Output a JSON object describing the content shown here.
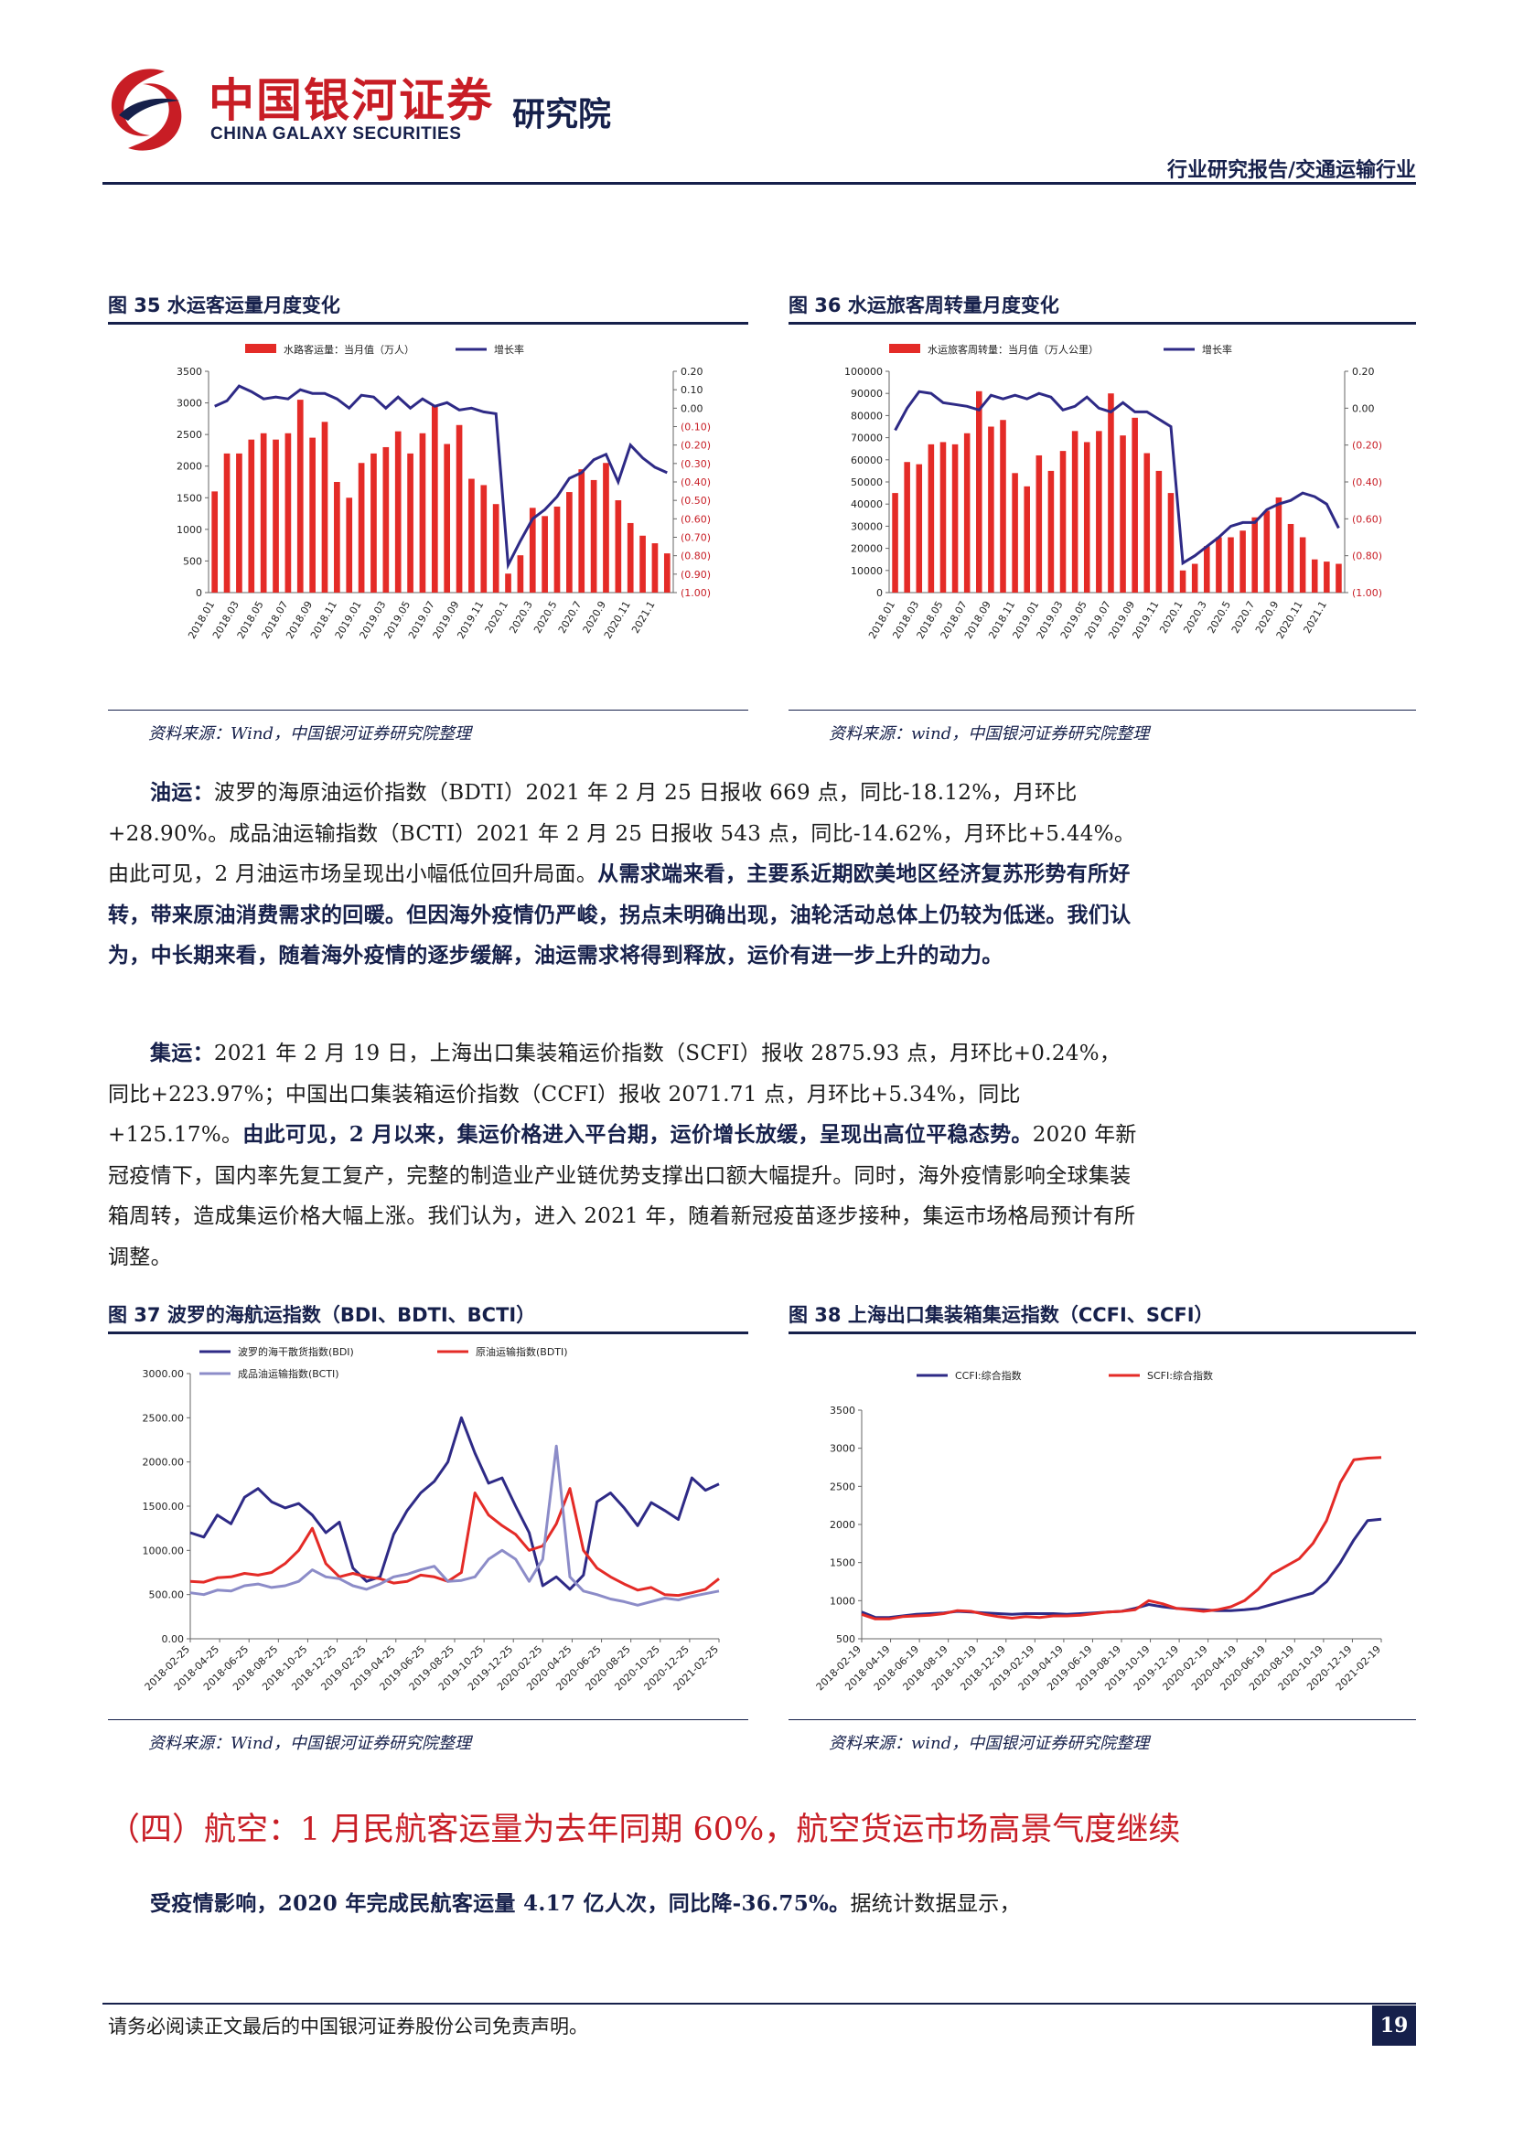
{
  "header": {
    "brand_cn": "中国银河证券",
    "brand_en": "CHINA GALAXY SECURITIES",
    "institute": "研究院",
    "report_type": "行业研究报告/交通运输行业"
  },
  "figures": {
    "fig35": {
      "title": "图 35 水运客运量月度变化",
      "source": "资料来源：Wind，中国银河证券研究院整理"
    },
    "fig36": {
      "title": "图 36 水运旅客周转量月度变化",
      "source": "资料来源：wind，中国银河证券研究院整理"
    },
    "fig37": {
      "title": "图 37 波罗的海航运指数（BDI、BDTI、BCTI）",
      "source": "资料来源：Wind，中国银河证券研究院整理"
    },
    "fig38": {
      "title": "图 38 上海出口集装箱集运指数（CCFI、SCFI）",
      "source": "资料来源：wind，中国银河证券研究院整理"
    }
  },
  "chart_data": [
    {
      "id": "fig35",
      "type": "bar+line",
      "title": "",
      "categories": [
        "2018.01",
        "2018.02",
        "2018.03",
        "2018.04",
        "2018.05",
        "2018.06",
        "2018.07",
        "2018.08",
        "2018.09",
        "2018.10",
        "2018.11",
        "2018.12",
        "2019.01",
        "2019.02",
        "2019.03",
        "2019.04",
        "2019.05",
        "2019.06",
        "2019.07",
        "2019.08",
        "2019.09",
        "2019.10",
        "2019.11",
        "2019.12",
        "2020.1",
        "2020.2",
        "2020.3",
        "2020.4",
        "2020.5",
        "2020.6",
        "2020.7",
        "2020.8",
        "2020.9",
        "2020.10",
        "2020.11",
        "2020.12",
        "2021.1",
        "2021.2"
      ],
      "tick_labels": [
        "2018.01",
        "2018.03",
        "2018.05",
        "2018.07",
        "2018.09",
        "2018.11",
        "2019.01",
        "2019.03",
        "2019.05",
        "2019.07",
        "2019.09",
        "2019.11",
        "2020.1",
        "2020.3",
        "2020.5",
        "2020.7",
        "2020.9",
        "2020.11",
        "2021.1"
      ],
      "series": [
        {
          "name": "水路客运量：当月值（万人）",
          "kind": "bar",
          "axis": "left",
          "color": "#e42b27",
          "values": [
            1600,
            2200,
            2200,
            2420,
            2520,
            2420,
            2520,
            3050,
            2450,
            2700,
            1750,
            1500,
            2050,
            2200,
            2300,
            2550,
            2200,
            2520,
            2950,
            2350,
            2650,
            1800,
            1700,
            1400,
            300,
            590,
            1340,
            1210,
            1360,
            1590,
            1950,
            1780,
            2050,
            1460,
            1100,
            900,
            780,
            620
          ]
        },
        {
          "name": "增长率",
          "kind": "line",
          "axis": "right",
          "color": "#2e2a86",
          "values": [
            0.01,
            0.04,
            0.12,
            0.09,
            0.05,
            0.06,
            0.05,
            0.1,
            0.08,
            0.08,
            0.05,
            0.0,
            0.07,
            0.06,
            0.0,
            0.06,
            0.0,
            0.05,
            0.01,
            0.03,
            -0.01,
            -0.0,
            -0.02,
            -0.03,
            -0.85,
            -0.72,
            -0.6,
            -0.55,
            -0.48,
            -0.38,
            -0.35,
            -0.28,
            -0.25,
            -0.4,
            -0.2,
            -0.27,
            -0.32,
            -0.35
          ]
        }
      ],
      "left_axis": {
        "ticks": [
          "0",
          "500",
          "1000",
          "1500",
          "2000",
          "2500",
          "3000",
          "3500"
        ],
        "ylim": [
          0,
          3500
        ]
      },
      "right_axis": {
        "ticks": [
          "0.20",
          "0.10",
          "0.00",
          "(0.10)",
          "(0.20)",
          "(0.30)",
          "(0.40)",
          "(0.50)",
          "(0.60)",
          "(0.70)",
          "(0.80)",
          "(0.90)",
          "(1.00)"
        ],
        "ylim": [
          -1.0,
          0.2
        ]
      },
      "legend_position": "top"
    },
    {
      "id": "fig36",
      "type": "bar+line",
      "title": "",
      "categories": [
        "2018.01",
        "2018.02",
        "2018.03",
        "2018.04",
        "2018.05",
        "2018.06",
        "2018.07",
        "2018.08",
        "2018.09",
        "2018.10",
        "2018.11",
        "2018.12",
        "2019.01",
        "2019.02",
        "2019.03",
        "2019.04",
        "2019.05",
        "2019.06",
        "2019.07",
        "2019.08",
        "2019.09",
        "2019.10",
        "2019.11",
        "2019.12",
        "2020.1",
        "2020.2",
        "2020.3",
        "2020.4",
        "2020.5",
        "2020.6",
        "2020.7",
        "2020.8",
        "2020.9",
        "2020.10",
        "2020.11",
        "2020.12",
        "2021.1",
        "2021.2"
      ],
      "tick_labels": [
        "2018.01",
        "2018.03",
        "2018.05",
        "2018.07",
        "2018.09",
        "2018.11",
        "2019.01",
        "2019.03",
        "2019.05",
        "2019.07",
        "2019.09",
        "2019.11",
        "2020.1",
        "2020.3",
        "2020.5",
        "2020.7",
        "2020.9",
        "2020.11",
        "2021.1"
      ],
      "series": [
        {
          "name": "水运旅客周转量：当月值（万人公里）",
          "kind": "bar",
          "axis": "left",
          "color": "#e42b27",
          "values": [
            45000,
            59000,
            58000,
            67000,
            68000,
            67000,
            72000,
            91000,
            75000,
            78000,
            54000,
            48000,
            62000,
            55000,
            64000,
            73000,
            68000,
            73000,
            90000,
            71000,
            79000,
            63000,
            55000,
            45000,
            10000,
            13000,
            21000,
            25000,
            25000,
            28000,
            34000,
            37000,
            43000,
            31000,
            25000,
            15000,
            14000,
            13000
          ]
        },
        {
          "name": "增长率",
          "kind": "line",
          "axis": "right",
          "color": "#2e2a86",
          "values": [
            -0.12,
            0.0,
            0.09,
            0.08,
            0.03,
            0.02,
            0.01,
            -0.01,
            0.07,
            0.05,
            0.07,
            0.05,
            0.08,
            0.06,
            -0.01,
            0.01,
            0.06,
            0.0,
            -0.02,
            0.03,
            -0.02,
            -0.02,
            -0.06,
            -0.1,
            -0.84,
            -0.8,
            -0.75,
            -0.7,
            -0.64,
            -0.62,
            -0.62,
            -0.55,
            -0.52,
            -0.5,
            -0.46,
            -0.48,
            -0.52,
            -0.65
          ]
        }
      ],
      "left_axis": {
        "ticks": [
          "0",
          "10000",
          "20000",
          "30000",
          "40000",
          "50000",
          "60000",
          "70000",
          "80000",
          "90000",
          "100000"
        ],
        "ylim": [
          0,
          100000
        ]
      },
      "right_axis": {
        "ticks": [
          "0.20",
          "0.00",
          "(0.20)",
          "(0.40)",
          "(0.60)",
          "(0.80)",
          "(1.00)"
        ],
        "ylim": [
          -1.0,
          0.2
        ]
      },
      "legend_position": "top"
    },
    {
      "id": "fig37",
      "type": "line",
      "title": "",
      "tick_labels": [
        "2018-02-25",
        "2018-04-25",
        "2018-06-25",
        "2018-08-25",
        "2018-10-25",
        "2018-12-25",
        "2019-02-25",
        "2019-04-25",
        "2019-06-25",
        "2019-08-25",
        "2019-10-25",
        "2019-12-25",
        "2020-02-25",
        "2020-04-25",
        "2020-06-25",
        "2020-08-25",
        "2020-10-25",
        "2020-12-25",
        "2021-02-25"
      ],
      "series": [
        {
          "name": "波罗的海干散货指数(BDI)",
          "color": "#2e2a86",
          "values": [
            1200,
            1150,
            1400,
            1300,
            1600,
            1700,
            1550,
            1480,
            1530,
            1400,
            1200,
            1320,
            800,
            650,
            700,
            1180,
            1450,
            1650,
            1780,
            2000,
            2500,
            2100,
            1760,
            1820,
            1500,
            1200,
            600,
            700,
            560,
            720,
            1550,
            1650,
            1480,
            1280,
            1540,
            1450,
            1350,
            1820,
            1680,
            1750
          ]
        },
        {
          "name": "原油运输指数(BDTI)",
          "color": "#e42b27",
          "values": [
            650,
            640,
            690,
            700,
            740,
            720,
            750,
            850,
            1000,
            1250,
            850,
            700,
            740,
            700,
            680,
            630,
            650,
            720,
            700,
            650,
            750,
            1650,
            1400,
            1280,
            1180,
            1000,
            1050,
            1300,
            1700,
            1000,
            800,
            700,
            620,
            550,
            580,
            500,
            490,
            520,
            560,
            680
          ]
        },
        {
          "name": "成品油运输指数(BCTI)",
          "color": "#8c8cc8",
          "values": [
            520,
            500,
            550,
            540,
            600,
            620,
            580,
            600,
            650,
            780,
            700,
            680,
            600,
            560,
            620,
            700,
            730,
            780,
            820,
            650,
            660,
            700,
            900,
            1000,
            900,
            650,
            900,
            2180,
            700,
            540,
            500,
            450,
            420,
            380,
            420,
            460,
            440,
            480,
            510,
            540
          ]
        }
      ],
      "left_axis": {
        "ticks": [
          "0.00",
          "500.00",
          "1000.00",
          "1500.00",
          "2000.00",
          "2500.00",
          "3000.00"
        ],
        "ylim": [
          0,
          3000
        ]
      },
      "legend_position": "top"
    },
    {
      "id": "fig38",
      "type": "line",
      "title": "",
      "tick_labels": [
        "2018-02-19",
        "2018-04-19",
        "2018-06-19",
        "2018-08-19",
        "2018-10-19",
        "2018-12-19",
        "2019-02-19",
        "2019-04-19",
        "2019-06-19",
        "2019-08-19",
        "2019-10-19",
        "2019-12-19",
        "2020-02-19",
        "2020-04-19",
        "2020-06-19",
        "2020-08-19",
        "2020-10-19",
        "2020-12-19",
        "2021-02-19"
      ],
      "series": [
        {
          "name": "CCFI:综合指数",
          "color": "#2e2a86",
          "values": [
            850,
            780,
            780,
            800,
            820,
            830,
            840,
            860,
            850,
            840,
            830,
            820,
            830,
            830,
            830,
            820,
            830,
            840,
            850,
            860,
            900,
            950,
            920,
            900,
            890,
            880,
            870,
            870,
            880,
            900,
            950,
            1000,
            1050,
            1100,
            1250,
            1500,
            1800,
            2050,
            2070
          ]
        },
        {
          "name": "SCFI:综合指数",
          "color": "#e42b27",
          "values": [
            820,
            760,
            760,
            790,
            800,
            810,
            830,
            870,
            860,
            820,
            790,
            770,
            790,
            780,
            800,
            800,
            810,
            830,
            850,
            860,
            880,
            1000,
            960,
            900,
            880,
            860,
            880,
            920,
            1000,
            1150,
            1350,
            1450,
            1550,
            1750,
            2050,
            2550,
            2850,
            2870,
            2880
          ]
        }
      ],
      "left_axis": {
        "ticks": [
          "500",
          "1000",
          "1500",
          "2000",
          "2500",
          "3000",
          "3500"
        ],
        "ylim": [
          500,
          3500
        ]
      },
      "legend_position": "top"
    }
  ],
  "body": {
    "p1_lead": "油运：",
    "p1_plain": "波罗的海原油运价指数（BDTI）2021 年 2 月 25 日报收 669 点，同比-18.12%，月环比+28.90%。成品油运输指数（BCTI）2021 年 2 月 25 日报收 543 点，同比-14.62%，月环比+5.44%。由此可见，2 月油运市场呈现出小幅低位回升局面。",
    "p1_bold": "从需求端来看，主要系近期欧美地区经济复苏形势有所好转，带来原油消费需求的回暖。但因海外疫情仍严峻，拐点未明确出现，油轮活动总体上仍较为低迷。我们认为，中长期来看，随着海外疫情的逐步缓解，油运需求将得到释放，运价有进一步上升的动力。",
    "p2_lead": "集运：",
    "p2_plain": "2021 年 2 月 19 日，上海出口集装箱运价指数（SCFI）报收 2875.93 点，月环比+0.24%，同比+223.97%；中国出口集装箱运价指数（CCFI）报收 2071.71 点，月环比+5.34%，同比+125.17%。",
    "p2_bold": "由此可见，2 月以来，集运价格进入平台期，运价增长放缓，呈现出高位平稳态势。",
    "p2_tail": "2020 年新冠疫情下，国内率先复工复产，完整的制造业产业链优势支撑出口额大幅提升。同时，海外疫情影响全球集装箱周转，造成集运价格大幅上涨。我们认为，进入 2021 年，随着新冠疫苗逐步接种，集运市场格局预计有所调整。",
    "section_heading": "（四）航空：1 月民航客运量为去年同期 60%，航空货运市场高景气度继续",
    "p3_bold": "受疫情影响，2020 年完成民航客运量 4.17 亿人次，同比降-36.75%。",
    "p3_plain": "据统计数据显示，"
  },
  "footer": {
    "disclaimer": "请务必阅读正文最后的中国银河证券股份公司免责声明。",
    "page_number": "19"
  },
  "colors": {
    "navy": "#16204b",
    "red": "#c81d25",
    "bar_red": "#e42b27",
    "line_navy": "#2e2a86",
    "line_lav": "#8c8cc8"
  }
}
